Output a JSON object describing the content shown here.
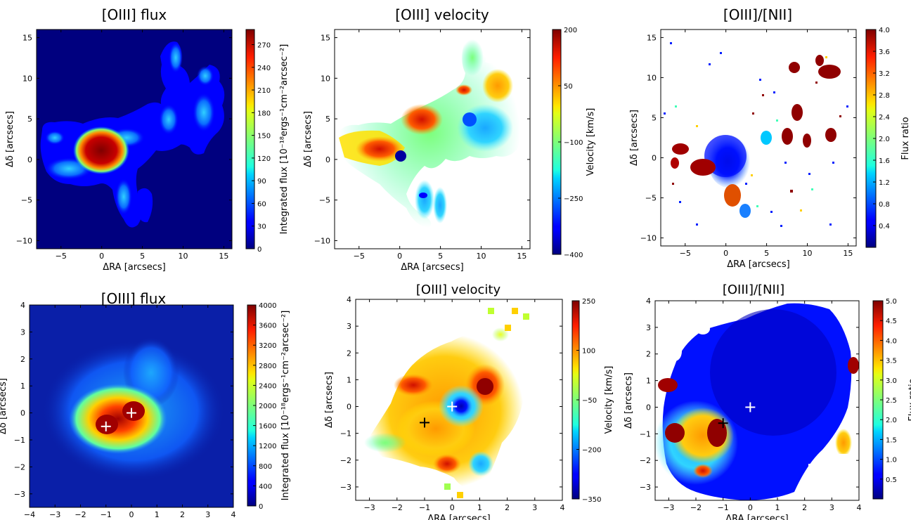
{
  "panels": [
    {
      "id": "p1",
      "title": "[OIII] flux",
      "xlabel": "ΔRA [arcsecs]",
      "ylabel": "Δδ [arcsecs]",
      "xlim": [
        -8,
        16
      ],
      "ylim": [
        -11,
        16
      ],
      "xticks": [
        -5,
        0,
        5,
        10,
        15
      ],
      "yticks": [
        -10,
        -5,
        0,
        5,
        10,
        15
      ],
      "xtick_labels": [
        "−5",
        "0",
        "5",
        "10",
        "15"
      ],
      "ytick_labels": [
        "−10",
        "−5",
        "0",
        "5",
        "10",
        "15"
      ],
      "colormap": "jet",
      "background": "#00007f",
      "colorbar": {
        "label": "Integrated flux [10⁻¹⁸ergs⁻¹cm⁻²arcsec⁻²]",
        "range": [
          0,
          290
        ],
        "ticks": [
          0,
          30,
          60,
          90,
          120,
          150,
          180,
          210,
          240,
          270
        ],
        "tick_labels": [
          "0",
          "30",
          "60",
          "90",
          "120",
          "150",
          "180",
          "210",
          "240",
          "270"
        ]
      },
      "markers": [],
      "chart_data": {
        "type": "heatmap",
        "features": [
          {
            "x": 0.5,
            "y": 0.3,
            "value": 290,
            "extent_arcsec": [
              4,
              4
            ]
          },
          {
            "x": 2.0,
            "y": 1.5,
            "value": 110,
            "extent_arcsec": [
              12,
              8
            ]
          },
          {
            "x": 12.0,
            "y": 9.0,
            "value": 90,
            "extent_arcsec": [
              8,
              10
            ]
          }
        ]
      }
    },
    {
      "id": "p2",
      "title": "[OIII] velocity",
      "xlabel": "ΔRA [arcsecs]",
      "ylabel": "Δδ [arcsecs]",
      "xlim": [
        -8,
        16
      ],
      "ylim": [
        -11,
        16
      ],
      "xticks": [
        -5,
        0,
        5,
        10,
        15
      ],
      "yticks": [
        -10,
        -5,
        0,
        5,
        10,
        15
      ],
      "xtick_labels": [
        "−5",
        "0",
        "5",
        "10",
        "15"
      ],
      "ytick_labels": [
        "−10",
        "−5",
        "0",
        "5",
        "10",
        "15"
      ],
      "colormap": "jet",
      "background": "#ffffff",
      "colorbar": {
        "label": "Velocity [km/s]",
        "range": [
          -400,
          200
        ],
        "ticks": [
          -400,
          -250,
          -100,
          50,
          200
        ],
        "tick_labels": [
          "−400",
          "−250",
          "−100",
          "50",
          "200"
        ]
      },
      "markers": [],
      "chart_data": {
        "type": "heatmap",
        "features": [
          {
            "x": 3.0,
            "y": 4.0,
            "value": 180
          },
          {
            "x": 0.0,
            "y": 0.0,
            "value": -350
          },
          {
            "x": 9.0,
            "y": 4.0,
            "value": -220
          },
          {
            "x": 11.0,
            "y": 12.0,
            "value": -60
          }
        ]
      }
    },
    {
      "id": "p3",
      "title": "[OIII]/[NII]",
      "xlabel": "ΔRA [arcsecs]",
      "ylabel": "Δδ [arcsecs]",
      "xlim": [
        -8,
        16
      ],
      "ylim": [
        -11,
        16
      ],
      "xticks": [
        -5,
        0,
        5,
        10,
        15
      ],
      "yticks": [
        -10,
        -5,
        0,
        5,
        10,
        15
      ],
      "xtick_labels": [
        "−5",
        "0",
        "5",
        "10",
        "15"
      ],
      "ytick_labels": [
        "−10",
        "−5",
        "0",
        "5",
        "10",
        "15"
      ],
      "colormap": "jet",
      "background": "#ffffff",
      "colorbar": {
        "label": "Flux ratio",
        "range": [
          0,
          4
        ],
        "ticks": [
          0.4,
          0.8,
          1.2,
          1.6,
          2.0,
          2.4,
          2.8,
          3.2,
          3.6,
          4.0
        ],
        "tick_labels": [
          "0.4",
          "0.8",
          "1.2",
          "1.6",
          "2.0",
          "2.4",
          "2.8",
          "3.2",
          "3.6",
          "4.0"
        ]
      },
      "markers": [],
      "chart_data": {
        "type": "heatmap",
        "features": [
          {
            "x": 1.0,
            "y": 0.5,
            "value": 0.3
          },
          {
            "x": -2.5,
            "y": -1.0,
            "value": 4.0
          },
          {
            "x": 13.0,
            "y": 10.5,
            "value": 4.0
          }
        ]
      }
    },
    {
      "id": "p4",
      "title": "[OIII] flux",
      "xlabel": "ΔRA [arcsecs]",
      "ylabel": "Δδ [arcsecs]",
      "xlim": [
        -4,
        4
      ],
      "ylim": [
        -3.5,
        4
      ],
      "xticks": [
        -4,
        -3,
        -2,
        -1,
        0,
        1,
        2,
        3,
        4
      ],
      "yticks": [
        -3,
        -2,
        -1,
        0,
        1,
        2,
        3,
        4
      ],
      "xtick_labels": [
        "−4",
        "−3",
        "−2",
        "−1",
        "0",
        "1",
        "2",
        "3",
        "4"
      ],
      "ytick_labels": [
        "−3",
        "−2",
        "−1",
        "0",
        "1",
        "2",
        "3",
        "4"
      ],
      "colormap": "jet",
      "background": "#0a1fa8",
      "colorbar": {
        "label": "Integrated flux [10⁻¹⁸ergs⁻¹cm⁻²arcsec⁻²]",
        "range": [
          0,
          4000
        ],
        "ticks": [
          0,
          400,
          800,
          1200,
          1600,
          2000,
          2400,
          2800,
          3200,
          3600,
          4000
        ],
        "tick_labels": [
          "0",
          "400",
          "800",
          "1200",
          "1600",
          "2000",
          "2400",
          "2800",
          "3200",
          "3600",
          "4000"
        ]
      },
      "markers": [
        {
          "x": -1.0,
          "y": -0.5,
          "color": "#ffffff"
        },
        {
          "x": 0.0,
          "y": 0.0,
          "color": "#ffffff"
        }
      ],
      "chart_data": {
        "type": "heatmap",
        "features": [
          {
            "x": -1.0,
            "y": -0.5,
            "value": 3900
          },
          {
            "x": 0.0,
            "y": 0.0,
            "value": 3800
          },
          {
            "x": 0.8,
            "y": 0.8,
            "value": 900
          }
        ]
      }
    },
    {
      "id": "p5",
      "title": "[OIII] velocity",
      "xlabel": "ΔRA [arcsecs]",
      "ylabel": "Δδ [arcsecs]",
      "xlim": [
        -3.5,
        4
      ],
      "ylim": [
        -3.5,
        4
      ],
      "xticks": [
        -3,
        -2,
        -1,
        0,
        1,
        2,
        3,
        4
      ],
      "yticks": [
        -3,
        -2,
        -1,
        0,
        1,
        2,
        3,
        4
      ],
      "xtick_labels": [
        "−3",
        "−2",
        "−1",
        "0",
        "1",
        "2",
        "3",
        "4"
      ],
      "ytick_labels": [
        "−3",
        "−2",
        "−1",
        "0",
        "1",
        "2",
        "3",
        "4"
      ],
      "colormap": "jet",
      "background": "#ffffff",
      "colorbar": {
        "label": "Velocity [km/s]",
        "range": [
          -350,
          250
        ],
        "ticks": [
          -350,
          -200,
          -50,
          100,
          250
        ],
        "tick_labels": [
          "−350",
          "−200",
          "−50",
          "100",
          "250"
        ]
      },
      "markers": [
        {
          "x": -1.0,
          "y": -0.6,
          "color": "#000000"
        },
        {
          "x": 0.0,
          "y": 0.0,
          "color": "#ffffff"
        }
      ],
      "chart_data": {
        "type": "heatmap",
        "features": [
          {
            "x": 0.0,
            "y": 0.0,
            "value": -340
          },
          {
            "x": 1.0,
            "y": 0.9,
            "value": 240
          },
          {
            "x": -1.5,
            "y": 0.9,
            "value": 230
          }
        ]
      }
    },
    {
      "id": "p6",
      "title": "[OIII]/[NII]",
      "xlabel": "ΔRA [arcsecs]",
      "ylabel": "Δδ [arcsecs]",
      "xlim": [
        -3.5,
        4
      ],
      "ylim": [
        -3.5,
        4
      ],
      "xticks": [
        -3,
        -2,
        -1,
        0,
        1,
        2,
        3,
        4
      ],
      "yticks": [
        -3,
        -2,
        -1,
        0,
        1,
        2,
        3,
        4
      ],
      "xtick_labels": [
        "−3",
        "−2",
        "−1",
        "0",
        "1",
        "2",
        "3",
        "4"
      ],
      "ytick_labels": [
        "−3",
        "−2",
        "−1",
        "0",
        "1",
        "2",
        "3",
        "4"
      ],
      "colormap": "jet",
      "background": "#ffffff",
      "colorbar": {
        "label": "Flux ratio",
        "range": [
          0,
          5
        ],
        "ticks": [
          0.5,
          1.0,
          1.5,
          2.0,
          2.5,
          3.0,
          3.5,
          4.0,
          4.5,
          5.0
        ],
        "tick_labels": [
          "0.5",
          "1.0",
          "1.5",
          "2.0",
          "2.5",
          "3.0",
          "3.5",
          "4.0",
          "4.5",
          "5.0"
        ]
      },
      "markers": [
        {
          "x": -1.0,
          "y": -0.6,
          "color": "#000000"
        },
        {
          "x": 0.0,
          "y": 0.0,
          "color": "#ffffff"
        }
      ],
      "chart_data": {
        "type": "heatmap",
        "features": [
          {
            "x": 0.5,
            "y": 1.5,
            "value": 0.2
          },
          {
            "x": -1.5,
            "y": -1.0,
            "value": 4.8
          },
          {
            "x": -3.3,
            "y": -1.0,
            "value": 4.9
          }
        ]
      }
    }
  ]
}
